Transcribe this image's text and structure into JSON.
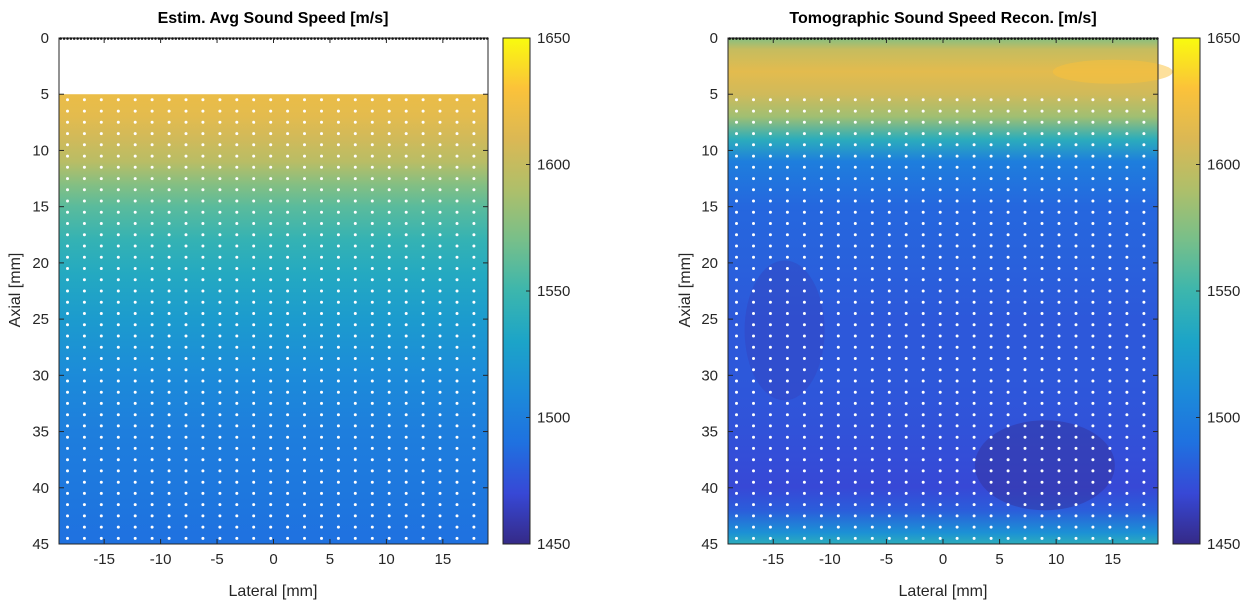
{
  "colors": {
    "colormap_parula": [
      "#352a87",
      "#3748d6",
      "#1f71e0",
      "#1c8bd9",
      "#1ca4c8",
      "#3cb6ad",
      "#77bf8a",
      "#aebf6a",
      "#dbb854",
      "#fbc23a",
      "#f9fb0e"
    ],
    "marker_dots": "#ffffff",
    "element_dots": "#000000"
  },
  "chart_data": [
    {
      "type": "heatmap",
      "title": "Estim. Avg Sound Speed [m/s]",
      "xlabel": "Lateral [mm]",
      "ylabel": "Axial [mm]",
      "xlim": [
        -19,
        19
      ],
      "ylim": [
        0,
        45
      ],
      "y_reversed": true,
      "xticks": [
        -15,
        -10,
        -5,
        0,
        5,
        10,
        15
      ],
      "yticks": [
        0,
        5,
        10,
        15,
        20,
        25,
        30,
        35,
        40,
        45
      ],
      "colorbar": {
        "clim": [
          1450,
          1650
        ],
        "ticks": [
          1450,
          1500,
          1550,
          1600,
          1650
        ]
      },
      "valid_axial_range_mm": [
        5,
        45
      ],
      "field_profile": {
        "axial_mm": [
          5,
          7,
          9,
          11,
          13,
          15,
          18,
          21,
          25,
          30,
          35,
          40,
          45
        ],
        "sound_speed_ms": [
          1620,
          1615,
          1605,
          1595,
          1575,
          1560,
          1545,
          1535,
          1523,
          1510,
          1500,
          1495,
          1490
        ]
      },
      "sample_points": {
        "lateral_mm": [
          -19,
          19,
          1.5
        ],
        "axial_mm": [
          5,
          45,
          1
        ]
      },
      "array_elements": {
        "axial_mm": 0,
        "lateral_mm": [
          -19,
          19,
          0.3
        ]
      }
    },
    {
      "type": "heatmap",
      "title": "Tomographic Sound Speed Recon. [m/s]",
      "xlabel": "Lateral [mm]",
      "ylabel": "Axial [mm]",
      "xlim": [
        -19,
        19
      ],
      "ylim": [
        0,
        45
      ],
      "y_reversed": true,
      "xticks": [
        -15,
        -10,
        -5,
        0,
        5,
        10,
        15
      ],
      "yticks": [
        0,
        5,
        10,
        15,
        20,
        25,
        30,
        35,
        40,
        45
      ],
      "colorbar": {
        "clim": [
          1450,
          1650
        ],
        "ticks": [
          1450,
          1500,
          1550,
          1600,
          1650
        ]
      },
      "valid_axial_range_mm": [
        0,
        45
      ],
      "field_profile": {
        "axial_mm": [
          0,
          1,
          3,
          5,
          7,
          9,
          11,
          15,
          20,
          25,
          30,
          35,
          40,
          42,
          44,
          45
        ],
        "sound_speed_ms": [
          1575,
          1600,
          1615,
          1605,
          1585,
          1540,
          1500,
          1485,
          1482,
          1478,
          1478,
          1475,
          1470,
          1480,
          1515,
          1540
        ]
      },
      "sample_points": {
        "lateral_mm": [
          -19,
          19,
          1.5
        ],
        "axial_mm": [
          5,
          45,
          1
        ]
      },
      "array_elements": {
        "axial_mm": 0,
        "lateral_mm": [
          -19,
          19,
          0.3
        ]
      }
    }
  ]
}
